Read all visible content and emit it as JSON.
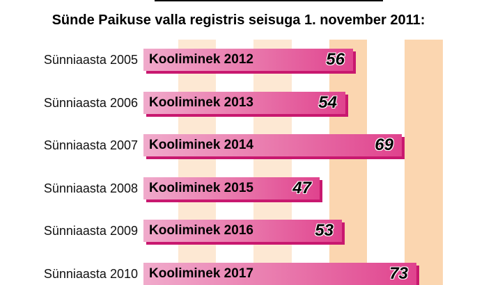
{
  "title": "Sünde Paikuse valla registris seisuga 1. november 2011:",
  "colors": {
    "bar_start": "#f0aacb",
    "bar_end": "#e0438e",
    "bar_shadow": "#c8186f",
    "stripe_light": "#fde8d3",
    "stripe_dark": "#fbd6b0"
  },
  "chart_data": {
    "type": "bar",
    "orientation": "horizontal",
    "title": "Sünde Paikuse valla registris seisuga 1. november 2011:",
    "categories": [
      "Sünniaasta 2005",
      "Sünniaasta 2006",
      "Sünniaasta 2007",
      "Sünniaasta 2008",
      "Sünniaasta 2009",
      "Sünniaasta 2010"
    ],
    "bar_labels": [
      "Kooliminek 2012",
      "Kooliminek 2013",
      "Kooliminek 2014",
      "Kooliminek 2015",
      "Kooliminek 2016",
      "Kooliminek 2017"
    ],
    "values": [
      56,
      54,
      69,
      47,
      53,
      73
    ],
    "xlim": [
      0,
      80
    ],
    "xlabel": "",
    "ylabel": ""
  }
}
